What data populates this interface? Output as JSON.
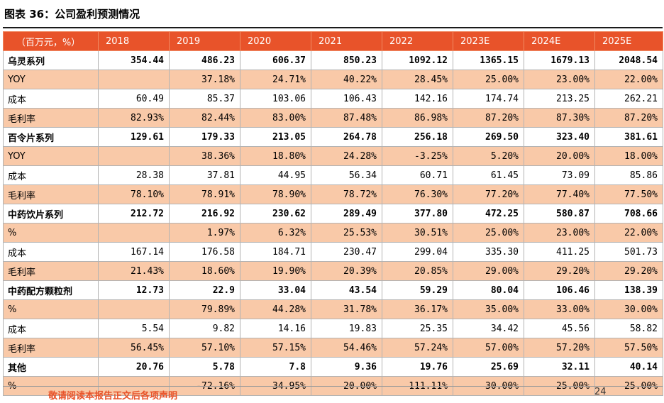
{
  "title": "图表 36：公司盈利预测情况",
  "table": {
    "headers": [
      "（百万元，%）",
      "2018",
      "2019",
      "2020",
      "2021",
      "2022",
      "2023E",
      "2024E",
      "2025E"
    ],
    "rows": [
      {
        "label": "乌灵系列",
        "style": "main",
        "cells": [
          "354.44",
          "486.23",
          "606.37",
          "850.23",
          "1092.12",
          "1365.15",
          "1679.13",
          "2048.54"
        ]
      },
      {
        "label": "YOY",
        "style": "orange",
        "cells": [
          "",
          "37.18%",
          "24.71%",
          "40.22%",
          "28.45%",
          "25.00%",
          "23.00%",
          "22.00%"
        ]
      },
      {
        "label": "成本",
        "style": "plain",
        "cells": [
          "60.49",
          "85.37",
          "103.06",
          "106.43",
          "142.16",
          "174.74",
          "213.25",
          "262.21"
        ]
      },
      {
        "label": "毛利率",
        "style": "orange",
        "cells": [
          "82.93%",
          "82.44%",
          "83.00%",
          "87.48%",
          "86.98%",
          "87.20%",
          "87.30%",
          "87.20%"
        ]
      },
      {
        "label": "百令片系列",
        "style": "main",
        "cells": [
          "129.61",
          "179.33",
          "213.05",
          "264.78",
          "256.18",
          "269.50",
          "323.40",
          "381.61"
        ]
      },
      {
        "label": "YOY",
        "style": "orange",
        "cells": [
          "",
          "38.36%",
          "18.80%",
          "24.28%",
          "-3.25%",
          "5.20%",
          "20.00%",
          "18.00%"
        ]
      },
      {
        "label": "成本",
        "style": "plain",
        "cells": [
          "28.38",
          "37.81",
          "44.95",
          "56.34",
          "60.71",
          "61.45",
          "73.09",
          "85.86"
        ]
      },
      {
        "label": "毛利率",
        "style": "orange",
        "cells": [
          "78.10%",
          "78.91%",
          "78.90%",
          "78.72%",
          "76.30%",
          "77.20%",
          "77.40%",
          "77.50%"
        ]
      },
      {
        "label": "中药饮片系列",
        "style": "main",
        "cells": [
          "212.72",
          "216.92",
          "230.62",
          "289.49",
          "377.80",
          "472.25",
          "580.87",
          "708.66"
        ]
      },
      {
        "label": "%",
        "style": "orange",
        "cells": [
          "",
          "1.97%",
          "6.32%",
          "25.53%",
          "30.51%",
          "25.00%",
          "23.00%",
          "22.00%"
        ]
      },
      {
        "label": "成本",
        "style": "plain",
        "cells": [
          "167.14",
          "176.58",
          "184.71",
          "230.47",
          "299.04",
          "335.30",
          "411.25",
          "501.73"
        ]
      },
      {
        "label": "毛利率",
        "style": "orange",
        "cells": [
          "21.43%",
          "18.60%",
          "19.90%",
          "20.39%",
          "20.85%",
          "29.00%",
          "29.20%",
          "29.20%"
        ]
      },
      {
        "label": "中药配方颗粒剂",
        "style": "main",
        "cells": [
          "12.73",
          "22.9",
          "33.04",
          "43.54",
          "59.29",
          "80.04",
          "106.46",
          "138.39"
        ]
      },
      {
        "label": "%",
        "style": "orange",
        "cells": [
          "",
          "79.89%",
          "44.28%",
          "31.78%",
          "36.17%",
          "35.00%",
          "33.00%",
          "30.00%"
        ]
      },
      {
        "label": "成本",
        "style": "plain",
        "cells": [
          "5.54",
          "9.82",
          "14.16",
          "19.83",
          "25.35",
          "34.42",
          "45.56",
          "58.82"
        ]
      },
      {
        "label": "毛利率",
        "style": "orange",
        "cells": [
          "56.45%",
          "57.10%",
          "57.15%",
          "54.46%",
          "57.24%",
          "57.00%",
          "57.20%",
          "57.50%"
        ]
      },
      {
        "label": "其他",
        "style": "main",
        "cells": [
          "20.76",
          "5.78",
          "7.8",
          "9.36",
          "19.76",
          "25.69",
          "32.11",
          "40.14"
        ]
      },
      {
        "label": "%",
        "style": "orange",
        "cells": [
          "",
          "-72.16%",
          "34.95%",
          "20.00%",
          "111.11%",
          "30.00%",
          "25.00%",
          "25.00%"
        ]
      }
    ]
  },
  "footer": {
    "disclaimer": "敬请阅读本报告正文后各项声明",
    "page_number": "24"
  },
  "colors": {
    "header_bg": "#e8532a",
    "band_bg": "#f9c9a8",
    "disclaimer": "#e8532a"
  }
}
